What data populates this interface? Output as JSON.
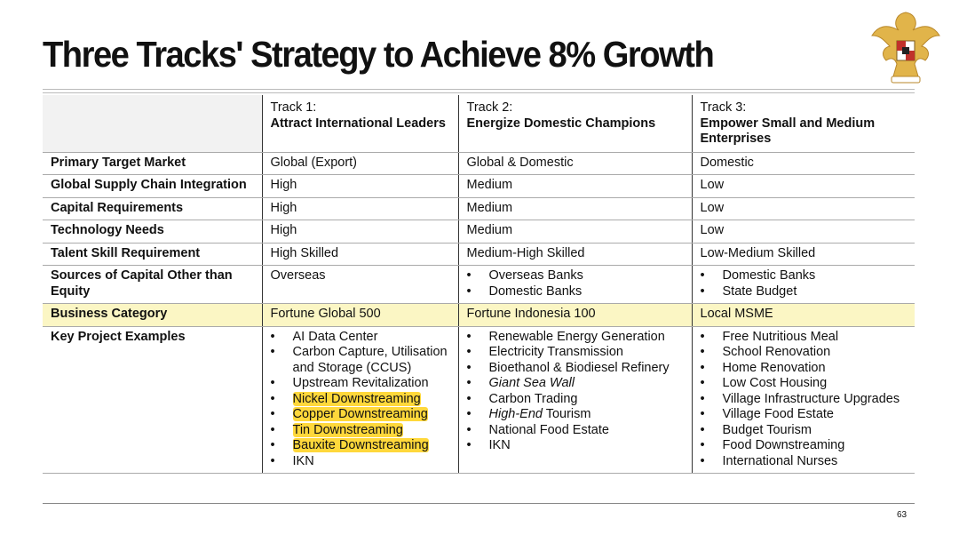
{
  "header": {
    "title": "Three Tracks' Strategy to Achieve 8% Growth"
  },
  "table": {
    "columns": [
      {
        "track": "Track 1:",
        "name": "Attract International Leaders"
      },
      {
        "track": "Track 2:",
        "name": "Energize Domestic Champions"
      },
      {
        "track": "Track 3:",
        "name": "Empower Small and Medium Enterprises"
      }
    ],
    "rows": [
      {
        "label": "Primary Target Market",
        "cells": [
          "Global (Export)",
          "Global & Domestic",
          "Domestic"
        ]
      },
      {
        "label": "Global Supply Chain Integration",
        "cells": [
          "High",
          "Medium",
          "Low"
        ]
      },
      {
        "label": "Capital Requirements",
        "cells": [
          "High",
          "Medium",
          "Low"
        ]
      },
      {
        "label": "Technology Needs",
        "cells": [
          "High",
          "Medium",
          "Low"
        ]
      },
      {
        "label": "Talent Skill Requirement",
        "cells": [
          "High Skilled",
          "Medium-High Skilled",
          "Low-Medium Skilled"
        ]
      },
      {
        "label": "Sources of Capital Other than Equity",
        "cells": [
          "Overseas",
          [
            "Overseas Banks",
            "Domestic Banks"
          ],
          [
            "Domestic Banks",
            "State Budget"
          ]
        ]
      },
      {
        "label": "Business Category",
        "highlight": true,
        "cells": [
          "Fortune Global 500",
          "Fortune Indonesia 100",
          "Local MSME"
        ]
      },
      {
        "label": "Key Project Examples",
        "cells": [
          [
            "AI Data Center",
            "Carbon Capture, Utilisation and Storage (CCUS)",
            "Upstream Revitalization",
            {
              "text": "Nickel Downstreaming",
              "highlight": true
            },
            {
              "text": "Copper Downstreaming",
              "highlight": true
            },
            {
              "text": "Tin Downstreaming",
              "highlight": true
            },
            {
              "text": "Bauxite Downstreaming",
              "highlight": true
            },
            "IKN"
          ],
          [
            "Renewable Energy Generation",
            "Electricity Transmission",
            "Bioethanol & Biodiesel Refinery",
            {
              "text": "Giant Sea Wall",
              "italic": true
            },
            "Carbon Trading",
            {
              "parts": [
                {
                  "text": "High-End",
                  "italic": true
                },
                {
                  "text": " Tourism"
                }
              ]
            },
            "National Food Estate",
            "IKN"
          ],
          [
            "Free Nutritious Meal",
            "School Renovation",
            "Home Renovation",
            "Low Cost Housing",
            "Village Infrastructure Upgrades",
            "Village Food Estate",
            "Budget Tourism",
            "Food Downstreaming",
            "International Nurses"
          ]
        ]
      }
    ]
  },
  "page_number": "63"
}
